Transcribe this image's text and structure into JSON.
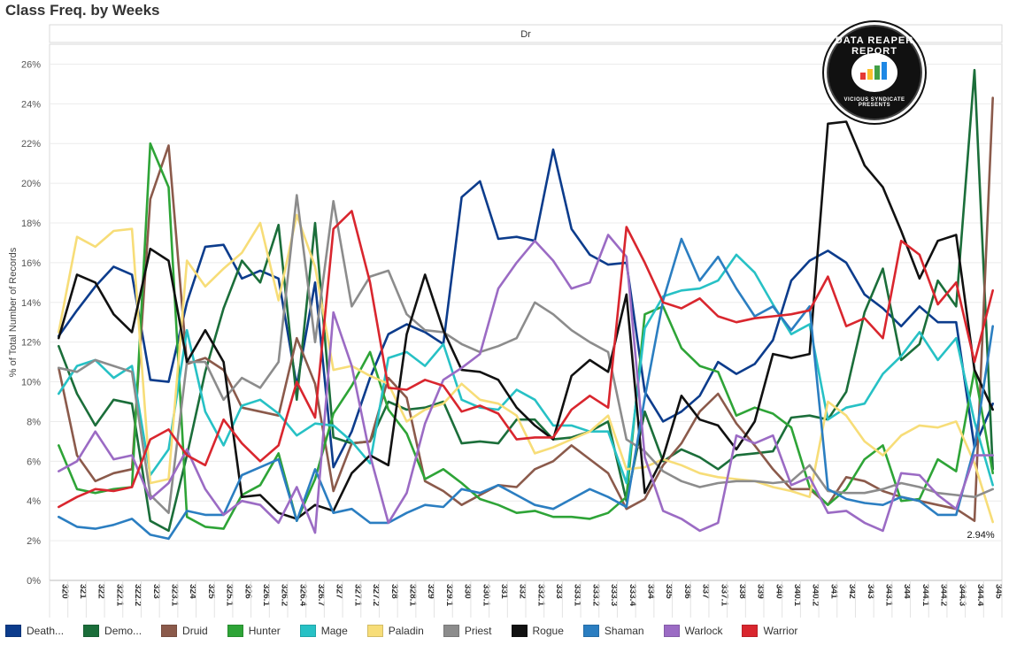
{
  "title": "Class Freq. by Weeks",
  "chart_data": {
    "type": "line",
    "facet_label": "Dr",
    "ylabel": "% of Total Number of Records",
    "xlabel": "",
    "ylim": [
      0,
      27
    ],
    "yticks": [
      0,
      2,
      4,
      6,
      8,
      10,
      12,
      14,
      16,
      18,
      20,
      22,
      24,
      26
    ],
    "ytick_labels": [
      "0%",
      "2%",
      "4%",
      "6%",
      "8%",
      "10%",
      "12%",
      "14%",
      "16%",
      "18%",
      "20%",
      "22%",
      "24%",
      "26%"
    ],
    "annotation": {
      "text": "2.94%",
      "series": "Paladin",
      "category": "345"
    },
    "categories": [
      "320",
      "321",
      "322",
      "322.1",
      "322.2",
      "323",
      "323.1",
      "324",
      "325",
      "325.1",
      "326",
      "326.1",
      "326.2",
      "326.4",
      "326.7",
      "327",
      "327.1",
      "327.2",
      "328",
      "328.1",
      "329",
      "329.1",
      "330",
      "330.1",
      "331",
      "332",
      "332.1",
      "333",
      "333.1",
      "333.2",
      "333.3",
      "333.4",
      "334",
      "335",
      "336",
      "337",
      "337.1",
      "338",
      "339",
      "340",
      "340.1",
      "340.2",
      "341",
      "342",
      "343",
      "343.1",
      "344",
      "344.1",
      "344.2",
      "344.3",
      "344.4",
      "345"
    ],
    "series": [
      {
        "name": "Death...",
        "color": "#0c3c8c",
        "values": [
          12.3,
          13.6,
          14.8,
          15.8,
          15.4,
          10.1,
          10.0,
          14.0,
          16.8,
          16.9,
          15.2,
          15.6,
          15.2,
          9.8,
          15.0,
          5.7,
          7.5,
          10.2,
          12.4,
          12.9,
          12.5,
          11.9,
          19.3,
          20.1,
          17.2,
          17.3,
          17.1,
          21.7,
          17.7,
          16.4,
          15.9,
          16.0,
          9.5,
          8.0,
          8.5,
          9.3,
          11.0,
          10.4,
          10.9,
          12.1,
          15.1,
          16.1,
          16.6,
          16.0,
          14.4,
          13.7,
          12.8,
          13.8,
          13.0,
          13.0,
          6.7,
          8.9
        ]
      },
      {
        "name": "Demo...",
        "color": "#1b6e3a",
        "values": [
          11.8,
          9.4,
          7.8,
          9.1,
          8.9,
          3.0,
          2.5,
          6.3,
          10.5,
          13.7,
          16.1,
          15.0,
          17.9,
          9.1,
          18.0,
          7.2,
          6.9,
          7.0,
          9.0,
          8.6,
          8.7,
          9.0,
          6.9,
          7.0,
          6.9,
          8.1,
          8.1,
          7.1,
          7.2,
          7.5,
          8.0,
          4.0,
          8.5,
          6.0,
          6.6,
          6.2,
          5.6,
          6.3,
          6.4,
          6.5,
          8.2,
          8.3,
          8.1,
          9.5,
          13.5,
          15.7,
          11.1,
          11.9,
          15.1,
          13.8,
          25.7,
          5.6
        ]
      },
      {
        "name": "Druid",
        "color": "#8b5a4b",
        "values": [
          10.7,
          6.3,
          5.0,
          5.4,
          5.6,
          19.2,
          21.9,
          10.9,
          11.2,
          10.6,
          8.7,
          8.5,
          8.3,
          12.2,
          9.9,
          4.5,
          6.9,
          7.0,
          10.2,
          9.2,
          5.0,
          4.5,
          3.8,
          4.3,
          4.8,
          4.7,
          5.6,
          6.0,
          6.8,
          6.1,
          5.4,
          3.6,
          4.1,
          5.8,
          6.9,
          8.5,
          9.4,
          7.9,
          6.8,
          5.6,
          4.6,
          4.6,
          3.8,
          5.2,
          5.0,
          4.5,
          4.2,
          4.0,
          3.8,
          3.6,
          3.0,
          24.3
        ]
      },
      {
        "name": "Hunter",
        "color": "#2ea437",
        "values": [
          6.8,
          4.6,
          4.4,
          4.6,
          4.7,
          22.0,
          19.8,
          3.2,
          2.7,
          2.6,
          4.3,
          4.8,
          6.4,
          3.0,
          5.1,
          8.4,
          9.8,
          11.5,
          8.6,
          7.4,
          5.1,
          5.6,
          4.9,
          4.1,
          3.8,
          3.4,
          3.5,
          3.2,
          3.2,
          3.1,
          3.4,
          4.2,
          13.4,
          13.8,
          11.7,
          10.8,
          10.5,
          8.3,
          8.7,
          8.4,
          7.7,
          4.7,
          3.8,
          4.6,
          6.1,
          6.8,
          4.0,
          4.1,
          6.1,
          5.5,
          10.6,
          5.4
        ]
      },
      {
        "name": "Mage",
        "color": "#27c1c5",
        "values": [
          9.4,
          10.8,
          11.1,
          10.2,
          10.8,
          5.3,
          6.6,
          12.6,
          8.5,
          6.8,
          8.8,
          9.1,
          8.4,
          7.3,
          7.9,
          7.8,
          7.0,
          5.9,
          11.2,
          11.5,
          10.8,
          11.9,
          9.1,
          8.7,
          8.6,
          9.6,
          9.1,
          7.8,
          7.8,
          7.5,
          7.5,
          4.9,
          12.7,
          14.3,
          14.6,
          14.7,
          15.1,
          16.4,
          15.5,
          13.9,
          12.4,
          12.9,
          8.1,
          8.7,
          8.9,
          10.4,
          11.3,
          12.5,
          11.1,
          12.2,
          8.0,
          4.8
        ]
      },
      {
        "name": "Paladin",
        "color": "#f7dd78",
        "values": [
          12.5,
          17.3,
          16.8,
          17.6,
          17.7,
          4.9,
          5.1,
          16.1,
          14.8,
          15.7,
          16.5,
          18.0,
          14.1,
          18.4,
          15.8,
          10.6,
          10.8,
          10.3,
          9.9,
          8.0,
          8.6,
          8.9,
          9.9,
          9.1,
          8.9,
          8.3,
          6.4,
          6.7,
          7.1,
          7.5,
          8.3,
          5.6,
          5.7,
          6.1,
          5.8,
          5.4,
          5.2,
          5.1,
          5.0,
          4.7,
          4.5,
          4.2,
          9.0,
          8.3,
          7.0,
          6.3,
          7.3,
          7.8,
          7.7,
          8.0,
          5.9,
          2.94
        ]
      },
      {
        "name": "Priest",
        "color": "#8c8c8c",
        "values": [
          10.7,
          10.5,
          11.1,
          10.8,
          10.5,
          4.3,
          3.4,
          11.0,
          11.0,
          9.1,
          10.2,
          9.7,
          11.0,
          19.4,
          12.0,
          19.1,
          13.8,
          15.3,
          15.6,
          13.4,
          12.6,
          12.5,
          11.9,
          11.5,
          11.8,
          12.2,
          14.0,
          13.4,
          12.6,
          12.0,
          11.5,
          7.1,
          6.5,
          5.5,
          5.0,
          4.7,
          4.9,
          5.0,
          5.0,
          4.9,
          5.0,
          5.8,
          4.5,
          4.4,
          4.4,
          4.6,
          4.9,
          4.7,
          4.4,
          4.3,
          4.2,
          4.6
        ]
      },
      {
        "name": "Rogue",
        "color": "#111111",
        "values": [
          12.2,
          15.4,
          15.0,
          13.4,
          12.5,
          16.7,
          16.1,
          11.0,
          12.6,
          11.0,
          4.2,
          4.3,
          3.4,
          3.1,
          3.8,
          3.5,
          5.4,
          6.3,
          5.8,
          12.4,
          15.4,
          12.6,
          10.6,
          10.5,
          10.1,
          8.7,
          7.8,
          7.1,
          10.3,
          11.1,
          10.5,
          14.4,
          4.4,
          6.2,
          9.3,
          8.1,
          7.8,
          6.6,
          8.0,
          11.4,
          11.2,
          11.4,
          23.0,
          23.1,
          20.9,
          19.8,
          17.6,
          15.2,
          17.1,
          17.4,
          10.6,
          8.6
        ]
      },
      {
        "name": "Shaman",
        "color": "#2b7ec1",
        "values": [
          3.2,
          2.7,
          2.6,
          2.8,
          3.1,
          2.3,
          2.1,
          3.5,
          3.3,
          3.3,
          5.3,
          5.7,
          6.1,
          3.0,
          5.6,
          3.4,
          3.6,
          2.9,
          2.9,
          3.4,
          3.8,
          3.7,
          4.6,
          4.4,
          4.8,
          4.3,
          3.8,
          3.6,
          4.1,
          4.6,
          4.2,
          3.7,
          9.2,
          14.1,
          17.2,
          15.1,
          16.3,
          14.7,
          13.3,
          13.8,
          12.6,
          13.8,
          4.6,
          4.1,
          3.9,
          3.8,
          4.2,
          4.0,
          3.3,
          3.3,
          6.7,
          12.8
        ]
      },
      {
        "name": "Warlock",
        "color": "#9b6bc4",
        "values": [
          5.5,
          6.0,
          7.5,
          6.1,
          6.3,
          4.1,
          4.9,
          6.6,
          4.6,
          3.3,
          4.0,
          3.8,
          2.9,
          4.7,
          2.4,
          13.5,
          10.8,
          6.3,
          2.9,
          4.4,
          7.9,
          10.1,
          10.7,
          11.4,
          14.7,
          16.0,
          17.1,
          16.1,
          14.7,
          15.0,
          17.4,
          16.3,
          6.2,
          3.5,
          3.1,
          2.5,
          2.9,
          7.3,
          6.9,
          7.3,
          4.8,
          5.2,
          3.4,
          3.5,
          2.9,
          2.5,
          5.4,
          5.3,
          4.3,
          3.6,
          6.3,
          6.3
        ]
      },
      {
        "name": "Warrior",
        "color": "#d9262e",
        "values": [
          3.7,
          4.2,
          4.6,
          4.5,
          4.7,
          7.1,
          7.6,
          6.3,
          5.8,
          8.1,
          6.9,
          6.0,
          6.8,
          10.0,
          8.2,
          17.7,
          18.6,
          15.0,
          9.7,
          9.6,
          10.1,
          9.8,
          8.5,
          8.8,
          8.4,
          7.1,
          7.2,
          7.2,
          8.6,
          9.3,
          8.7,
          17.8,
          16.0,
          14.0,
          13.7,
          14.2,
          13.3,
          13.0,
          13.2,
          13.3,
          13.4,
          13.6,
          15.3,
          12.8,
          13.2,
          12.2,
          17.1,
          16.4,
          13.9,
          15.0,
          11.0,
          14.6
        ]
      }
    ]
  },
  "watermark": {
    "title_text": "DATA REAPER REPORT",
    "subtitle_text": "VICIOUS SYNDICATE PRESENTS",
    "bar_colors": [
      "#e53935",
      "#fbc02d",
      "#43a047",
      "#1e88e5"
    ]
  }
}
